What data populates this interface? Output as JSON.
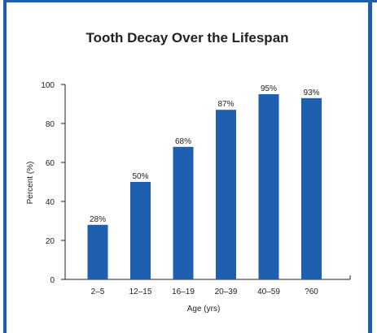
{
  "colors": {
    "frame": "#1f5fa6",
    "bar": "#1f5fb0",
    "axis": "#222222",
    "background": "#ffffff"
  },
  "chart_data": {
    "type": "bar",
    "title": "Tooth Decay Over the Lifespan",
    "xlabel": "Age (yrs)",
    "ylabel": "Percent (%)",
    "categories": [
      "2–5",
      "12–15",
      "16–19",
      "20–39",
      "40–59",
      "?60"
    ],
    "values": [
      28,
      50,
      68,
      87,
      95,
      93
    ],
    "data_labels": [
      "28%",
      "50%",
      "68%",
      "87%",
      "95%",
      "93%"
    ],
    "ylim": [
      0,
      100
    ],
    "yticks": [
      "0",
      "20",
      "40",
      "60",
      "80",
      "100"
    ],
    "grid": false,
    "legend": "none"
  }
}
